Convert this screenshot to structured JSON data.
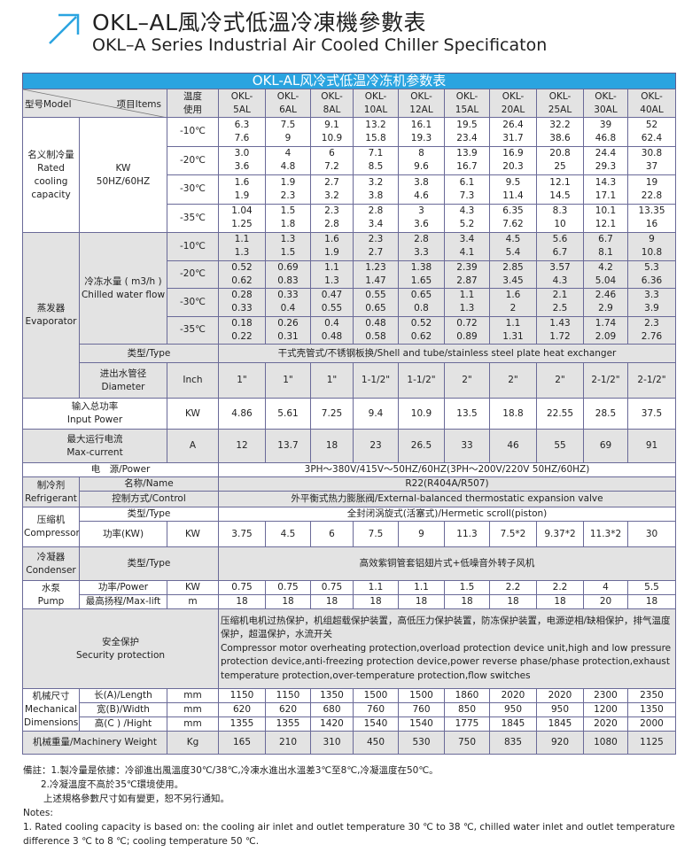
{
  "header": {
    "title_cn": "OKL–AL風冷式低溫冷凍機參數表",
    "title_en": "OKL–A Series Industrial Air Cooled Chiller Specificaton",
    "icon": "arrow-up-right-icon",
    "accent": "#2aa4e0"
  },
  "table": {
    "title": "OKL-AL风冷式低温冷冻机参数表",
    "head": {
      "model": "型号Model",
      "items": "项目Items",
      "temp_use": [
        "温度",
        "使用"
      ]
    },
    "models": [
      [
        "OKL-",
        "5AL"
      ],
      [
        "OKL-",
        "6AL"
      ],
      [
        "OKL-",
        "8AL"
      ],
      [
        "OKL-",
        "10AL"
      ],
      [
        "OKL-",
        "12AL"
      ],
      [
        "OKL-",
        "15AL"
      ],
      [
        "OKL-",
        "20AL"
      ],
      [
        "OKL-",
        "25AL"
      ],
      [
        "OKL-",
        "30AL"
      ],
      [
        "OKL-",
        "40AL"
      ]
    ],
    "cooling": {
      "label": [
        "名义制冷量",
        "Rated",
        "cooling",
        "capacity"
      ],
      "unit": [
        "KW",
        "50HZ/60HZ"
      ],
      "rows": [
        {
          "temp": "-10℃",
          "a": [
            "6.3",
            "7.5",
            "9.1",
            "13.2",
            "16.1",
            "19.5",
            "26.4",
            "32.2",
            "39",
            "52"
          ],
          "b": [
            "7.6",
            "9",
            "10.9",
            "15.8",
            "19.3",
            "23.4",
            "31.7",
            "38.6",
            "46.8",
            "62.4"
          ]
        },
        {
          "temp": "-20℃",
          "a": [
            "3.0",
            "4",
            "6",
            "7.1",
            "8",
            "13.9",
            "16.9",
            "20.8",
            "24.4",
            "30.8"
          ],
          "b": [
            "3.6",
            "4.8",
            "7.2",
            "8.5",
            "9.6",
            "16.7",
            "20.3",
            "25",
            "29.3",
            "37"
          ]
        },
        {
          "temp": "-30℃",
          "a": [
            "1.6",
            "1.9",
            "2.7",
            "3.2",
            "3.8",
            "6.1",
            "9.5",
            "12.1",
            "14.3",
            "19"
          ],
          "b": [
            "1.9",
            "2.3",
            "3.2",
            "3.8",
            "4.6",
            "7.3",
            "11.4",
            "14.5",
            "17.1",
            "22.8"
          ]
        },
        {
          "temp": "-35℃",
          "a": [
            "1.04",
            "1.5",
            "2.3",
            "2.8",
            "3",
            "4.3",
            "6.35",
            "8.3",
            "10.1",
            "13.35"
          ],
          "b": [
            "1.25",
            "1.8",
            "2.8",
            "3.4",
            "3.6",
            "5.2",
            "7.62",
            "10",
            "12.1",
            "16"
          ]
        }
      ]
    },
    "evaporator": {
      "label": [
        "蒸发器",
        "Evaporator"
      ],
      "flow_label": [
        "冷冻水量 ( m3/h )",
        "Chilled water flow"
      ],
      "rows": [
        {
          "temp": "-10℃",
          "a": [
            "1.1",
            "1.3",
            "1.6",
            "2.3",
            "2.8",
            "3.4",
            "4.5",
            "5.6",
            "6.7",
            "9"
          ],
          "b": [
            "1.3",
            "1.5",
            "1.9",
            "2.7",
            "3.3",
            "4.1",
            "5.4",
            "6.7",
            "8.1",
            "10.8"
          ]
        },
        {
          "temp": "-20℃",
          "a": [
            "0.52",
            "0.69",
            "1.1",
            "1.23",
            "1.38",
            "2.39",
            "2.85",
            "3.57",
            "4.2",
            "5.3"
          ],
          "b": [
            "0.62",
            "0.83",
            "1.3",
            "1.47",
            "1.65",
            "2.87",
            "3.45",
            "4.3",
            "5.04",
            "6.36"
          ]
        },
        {
          "temp": "-30℃",
          "a": [
            "0.28",
            "0.33",
            "0.47",
            "0.55",
            "0.65",
            "1.1",
            "1.6",
            "2.1",
            "2.46",
            "3.3"
          ],
          "b": [
            "0.33",
            "0.4",
            "0.55",
            "0.65",
            "0.8",
            "1.3",
            "2",
            "2.5",
            "2.9",
            "3.9"
          ]
        },
        {
          "temp": "-35℃",
          "a": [
            "0.18",
            "0.26",
            "0.4",
            "0.48",
            "0.52",
            "0.72",
            "1.1",
            "1.43",
            "1.74",
            "2.3"
          ],
          "b": [
            "0.22",
            "0.31",
            "0.48",
            "0.58",
            "0.62",
            "0.89",
            "1.31",
            "1.72",
            "2.09",
            "2.76"
          ]
        }
      ],
      "type_label": "类型/Type",
      "type_value": "干式壳管式/不锈钢板换/Shell and tube/stainless steel plate heat exchanger",
      "diameter_label": [
        "进出水管径",
        "Diameter"
      ],
      "diameter_unit": "Inch",
      "diameter": [
        "1\"",
        "1\"",
        "1\"",
        "1-1/2\"",
        "1-1/2\"",
        "2\"",
        "2\"",
        "2\"",
        "2-1/2\"",
        "2-1/2\""
      ]
    },
    "input_power": {
      "label": [
        "输入总功率",
        "Input Power"
      ],
      "unit": "KW",
      "values": [
        "4.86",
        "5.61",
        "7.25",
        "9.4",
        "10.9",
        "13.5",
        "18.8",
        "22.55",
        "28.5",
        "37.5"
      ]
    },
    "max_current": {
      "label": [
        "最大运行电流",
        "Max-current"
      ],
      "unit": "A",
      "values": [
        "12",
        "13.7",
        "18",
        "23",
        "26.5",
        "33",
        "46",
        "55",
        "69",
        "91"
      ]
    },
    "power": {
      "label": "电　源/Power",
      "value": "3PH～380V/415V～50HZ/60HZ(3PH～200V/220V  50HZ/60HZ)"
    },
    "refrigerant": {
      "label": [
        "制冷剂",
        "Refrigerant"
      ],
      "name_label": "名称/Name",
      "name_value": "R22(R404A/R507)",
      "control_label": "控制方式/Control",
      "control_value": "外平衡式热力膨胀阀/External-balanced thermostatic expansion valve"
    },
    "compressor": {
      "label": [
        "压缩机",
        "Compressor"
      ],
      "type_label": "类型/Type",
      "type_value": "全封闭涡旋式(活塞式)/Hermetic scroll(piston)",
      "power_label": "功率(KW)",
      "unit": "KW",
      "values": [
        "3.75",
        "4.5",
        "6",
        "7.5",
        "9",
        "11.3",
        "7.5*2",
        "9.37*2",
        "11.3*2",
        "30"
      ]
    },
    "condenser": {
      "label": [
        "冷凝器",
        "Condenser"
      ],
      "type_label": "类型/Type",
      "type_value": "高效紫铜管套铝翅片式+低噪音外转子风机"
    },
    "pump": {
      "label": [
        "水泵",
        "Pump"
      ],
      "power_label": "功率/Power",
      "power_unit": "KW",
      "power": [
        "0.75",
        "0.75",
        "0.75",
        "1.1",
        "1.1",
        "1.5",
        "2.2",
        "2.2",
        "4",
        "5.5"
      ],
      "lift_label": "最高扬程/Max-lift",
      "lift_unit": "m",
      "lift": [
        "18",
        "18",
        "18",
        "18",
        "18",
        "18",
        "18",
        "18",
        "20",
        "18"
      ]
    },
    "security": {
      "label": [
        "安全保护",
        "Security protection"
      ],
      "text_cn": "压缩机电机过热保护，机组超载保护装置，高低压力保护装置，防冻保护装置，电源逆相/缺相保护，排气温度保护，超温保护，水流开关",
      "text_en": " Compressor motor overheating protection,overload protection device unit,high and low pressure protection device,anti-freezing protection device,power reverse phase/phase protection,exhaust temperature protection,over-temperature protection,flow switches"
    },
    "dimensions": {
      "label": [
        "机械尺寸",
        "Mechanical",
        "Dimensions"
      ],
      "rows": [
        {
          "label": "长(A)/Length",
          "unit": "mm",
          "values": [
            "1150",
            "1150",
            "1350",
            "1500",
            "1500",
            "1860",
            "2020",
            "2020",
            "2300",
            "2350"
          ]
        },
        {
          "label": "宽(B)/Width",
          "unit": "mm",
          "values": [
            "620",
            "620",
            "680",
            "760",
            "760",
            "850",
            "950",
            "950",
            "1200",
            "1350"
          ]
        },
        {
          "label": "高(C ) /Hight",
          "unit": "mm",
          "values": [
            "1355",
            "1355",
            "1420",
            "1540",
            "1540",
            "1775",
            "1845",
            "1845",
            "2020",
            "2000"
          ]
        }
      ]
    },
    "weight": {
      "label": "机械重量/Machinery Weight",
      "unit": "Kg",
      "values": [
        "165",
        "210",
        "310",
        "450",
        "530",
        "750",
        "835",
        "920",
        "1080",
        "1125"
      ]
    }
  },
  "notes": {
    "lines": [
      "備註：1.製冷量是依據：冷卻進出風溫度30℃/38℃,冷凍水進出水溫差3℃至8℃,冷凝溫度在50℃。",
      "2.冷凝溫度不高於35℃環境使用。",
      "上述規格參數尺寸如有變更，恕不另行通知。",
      "Notes:",
      "1. Rated cooling capacity is based on: the cooling air inlet and outlet temperature 30 ℃ to 38 ℃, chilled water inlet and outlet temperature",
      "difference 3 ℃ to 8 ℃; cooling temperature 50 ℃."
    ]
  }
}
